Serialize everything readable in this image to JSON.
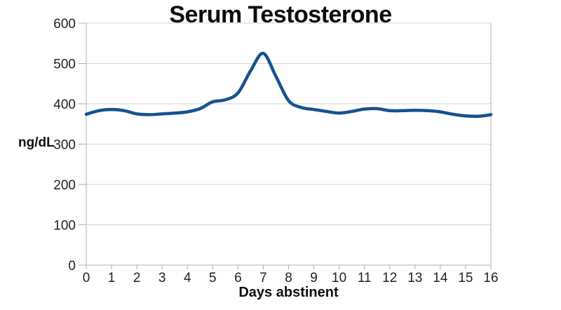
{
  "page": {
    "background": "#FFFFFF"
  },
  "chart_data": {
    "type": "line",
    "title": "Serum Testosterone",
    "ylabel": "ng/dL",
    "xlabel": "Days abstinent",
    "legend": "none",
    "grid": "horizontal gridlines every 100, plot bordered left/right/bottom/top",
    "ylim": [
      0,
      600
    ],
    "xlim": [
      0,
      16
    ],
    "y_ticks": [
      0,
      100,
      200,
      300,
      400,
      500,
      600
    ],
    "y_tick_labels": [
      "0",
      "100",
      "200",
      "300",
      "400",
      "500",
      "600"
    ],
    "x_ticks": [
      0,
      1,
      2,
      3,
      4,
      5,
      6,
      7,
      8,
      9,
      10,
      11,
      12,
      13,
      14,
      15,
      16
    ],
    "x_tick_labels": [
      "0",
      "1",
      "2",
      "3",
      "4",
      "5",
      "6",
      "7",
      "8",
      "9",
      "10",
      "11",
      "12",
      "13",
      "14",
      "15",
      "16"
    ],
    "x": [
      0,
      1,
      2,
      3,
      4,
      5,
      6,
      7,
      8,
      9,
      10,
      11,
      12,
      13,
      14,
      15,
      16
    ],
    "values": [
      374,
      386,
      375,
      375,
      380,
      405,
      427,
      525,
      408,
      386,
      377,
      387,
      383,
      384,
      380,
      370,
      373
    ],
    "smooth_samples": {
      "x_start": 0,
      "x_step": 0.5,
      "y": [
        374,
        383,
        386,
        383,
        375,
        373,
        375,
        377,
        380,
        388,
        405,
        410,
        427,
        482,
        525,
        468,
        408,
        391,
        386,
        381,
        377,
        381,
        387,
        388,
        383,
        383,
        384,
        383,
        380,
        374,
        370,
        369,
        373
      ]
    },
    "line_color": "#17518F",
    "grid_color": "#D6D6D6",
    "axis_color": "#ADADAD",
    "text_color": "#1F1F1F",
    "title_color": "#0D0D0D"
  }
}
